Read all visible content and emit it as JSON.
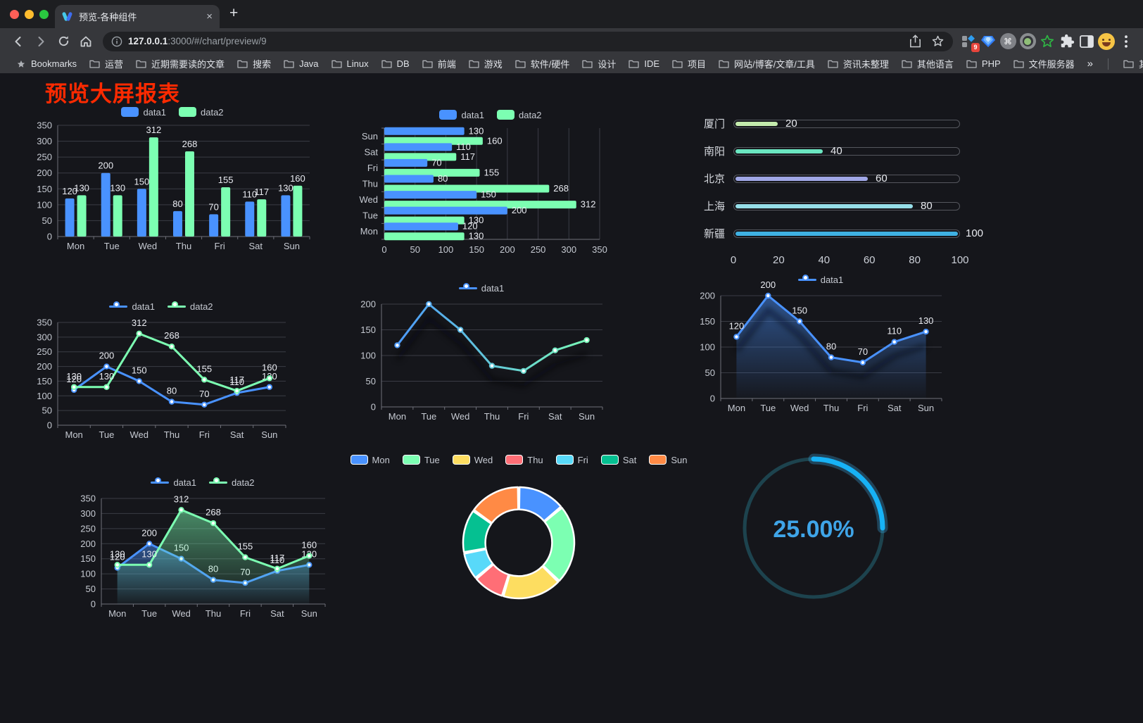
{
  "browser": {
    "tab_title": "预览-各种组件",
    "url_host": "127.0.0.1",
    "url_rest": ":3000/#/chart/preview/9",
    "extension_badge": "9",
    "new_tab_glyph": "+",
    "close_tab_glyph": "×",
    "icons": {
      "back": "arrow-left",
      "forward": "arrow-right",
      "reload": "refresh",
      "home": "house",
      "page_info": "info-circle",
      "share": "share-up-arrow",
      "bookmark_star": "star-outline",
      "extensions": "puzzle-piece",
      "menu": "kebab-dots",
      "command": "⌘"
    },
    "bookmarks_bar": {
      "first_item": "Bookmarks",
      "folders": [
        "运营",
        "近期需要读的文章",
        "搜索",
        "Java",
        "Linux",
        "DB",
        "前端",
        "游戏",
        "软件/硬件",
        "设计",
        "IDE",
        "项目",
        "网站/博客/文章/工具",
        "资讯未整理",
        "其他语言",
        "PHP",
        "文件服务器"
      ],
      "overflow": "»",
      "other_bookmarks": "其他书签"
    }
  },
  "page": {
    "title": "预览大屏报表",
    "title_color": "#ff2a00",
    "background": "#15161b"
  },
  "chart_data": [
    {
      "name": "grouped-bar-chart",
      "type": "bar",
      "legend_style": "bar",
      "categories": [
        "Mon",
        "Tue",
        "Wed",
        "Thu",
        "Fri",
        "Sat",
        "Sun"
      ],
      "series": [
        {
          "name": "data1",
          "color": "#4992ff",
          "values": [
            120,
            200,
            150,
            80,
            70,
            110,
            130
          ]
        },
        {
          "name": "data2",
          "color": "#7cffb2",
          "values": [
            130,
            130,
            312,
            268,
            155,
            117,
            160
          ]
        }
      ],
      "ylim": [
        0,
        350
      ],
      "ystep": 50,
      "value_labels": true,
      "grid": true,
      "legend_position": "top"
    },
    {
      "name": "horizontal-bar-chart",
      "type": "barh",
      "legend_style": "bar",
      "categories": [
        "Mon",
        "Tue",
        "Wed",
        "Thu",
        "Fri",
        "Sat",
        "Sun"
      ],
      "series": [
        {
          "name": "data1",
          "color": "#4992ff",
          "values": [
            120,
            200,
            150,
            80,
            70,
            110,
            130
          ]
        },
        {
          "name": "data2",
          "color": "#7cffb2",
          "values": [
            130,
            130,
            312,
            268,
            155,
            117,
            160
          ]
        }
      ],
      "xlim": [
        0,
        350
      ],
      "xstep": 50,
      "value_labels": true,
      "grid": true,
      "legend_position": "top"
    },
    {
      "name": "progress-bar-chart",
      "type": "progress",
      "categories": [
        "厦门",
        "南阳",
        "北京",
        "上海",
        "新疆"
      ],
      "values": [
        20,
        40,
        60,
        80,
        100
      ],
      "colors": [
        "#c4ebad",
        "#6be6c1",
        "#a0a7e6",
        "#96dee8",
        "#3fb1e3"
      ],
      "xlim": [
        0,
        100
      ],
      "xticks": [
        0,
        20,
        40,
        60,
        80,
        100
      ]
    },
    {
      "name": "dual-line-chart",
      "type": "line",
      "legend_style": "line",
      "categories": [
        "Mon",
        "Tue",
        "Wed",
        "Thu",
        "Fri",
        "Sat",
        "Sun"
      ],
      "series": [
        {
          "name": "data1",
          "color": "#4992ff",
          "values": [
            120,
            200,
            150,
            80,
            70,
            110,
            130
          ]
        },
        {
          "name": "data2",
          "color": "#7cffb2",
          "values": [
            130,
            130,
            312,
            268,
            155,
            117,
            160
          ]
        }
      ],
      "ylim": [
        0,
        350
      ],
      "ystep": 50,
      "value_labels": true,
      "grid": true,
      "legend_position": "top"
    },
    {
      "name": "gradient-line-chart",
      "type": "line",
      "legend_style": "line",
      "categories": [
        "Mon",
        "Tue",
        "Wed",
        "Thu",
        "Fri",
        "Sat",
        "Sun"
      ],
      "series": [
        {
          "name": "data1",
          "color": "#4992ff",
          "color_end": "#7cffb2",
          "gradient": true,
          "values": [
            120,
            200,
            150,
            80,
            70,
            110,
            130
          ]
        }
      ],
      "ylim": [
        0,
        200
      ],
      "ystep": 50,
      "value_labels": false,
      "shadow": true,
      "grid": true,
      "legend_position": "top"
    },
    {
      "name": "area-line-chart",
      "type": "line",
      "legend_style": "line",
      "categories": [
        "Mon",
        "Tue",
        "Wed",
        "Thu",
        "Fri",
        "Sat",
        "Sun"
      ],
      "series": [
        {
          "name": "data1",
          "color": "#4992ff",
          "area": true,
          "values": [
            120,
            200,
            150,
            80,
            70,
            110,
            130
          ]
        }
      ],
      "ylim": [
        0,
        200
      ],
      "ystep": 50,
      "value_labels": true,
      "shadow": true,
      "grid": true,
      "legend_position": "top"
    },
    {
      "name": "dual-area-chart",
      "type": "line",
      "legend_style": "line",
      "categories": [
        "Mon",
        "Tue",
        "Wed",
        "Thu",
        "Fri",
        "Sat",
        "Sun"
      ],
      "series": [
        {
          "name": "data1",
          "color": "#4992ff",
          "area": true,
          "values": [
            120,
            200,
            150,
            80,
            70,
            110,
            130
          ]
        },
        {
          "name": "data2",
          "color": "#7cffb2",
          "area": true,
          "values": [
            130,
            130,
            312,
            268,
            155,
            117,
            160
          ]
        }
      ],
      "ylim": [
        0,
        350
      ],
      "ystep": 50,
      "value_labels": true,
      "grid": true,
      "legend_position": "top"
    },
    {
      "name": "donut-chart",
      "type": "pie",
      "legend_position": "top",
      "categories": [
        "Mon",
        "Tue",
        "Wed",
        "Thu",
        "Fri",
        "Sat",
        "Sun"
      ],
      "values": [
        120,
        200,
        150,
        80,
        70,
        110,
        130
      ],
      "colors": [
        "#4992ff",
        "#7cffb2",
        "#fddd60",
        "#ff6e76",
        "#58d9f9",
        "#05c091",
        "#ff8a45"
      ],
      "inner_radius_ratio": 0.6
    },
    {
      "name": "ring-gauge",
      "type": "gauge",
      "value": 25,
      "label": "25.00%",
      "color": "#17b2f6",
      "track_color": "#1d434e",
      "text_color": "#3fa5e8"
    }
  ]
}
